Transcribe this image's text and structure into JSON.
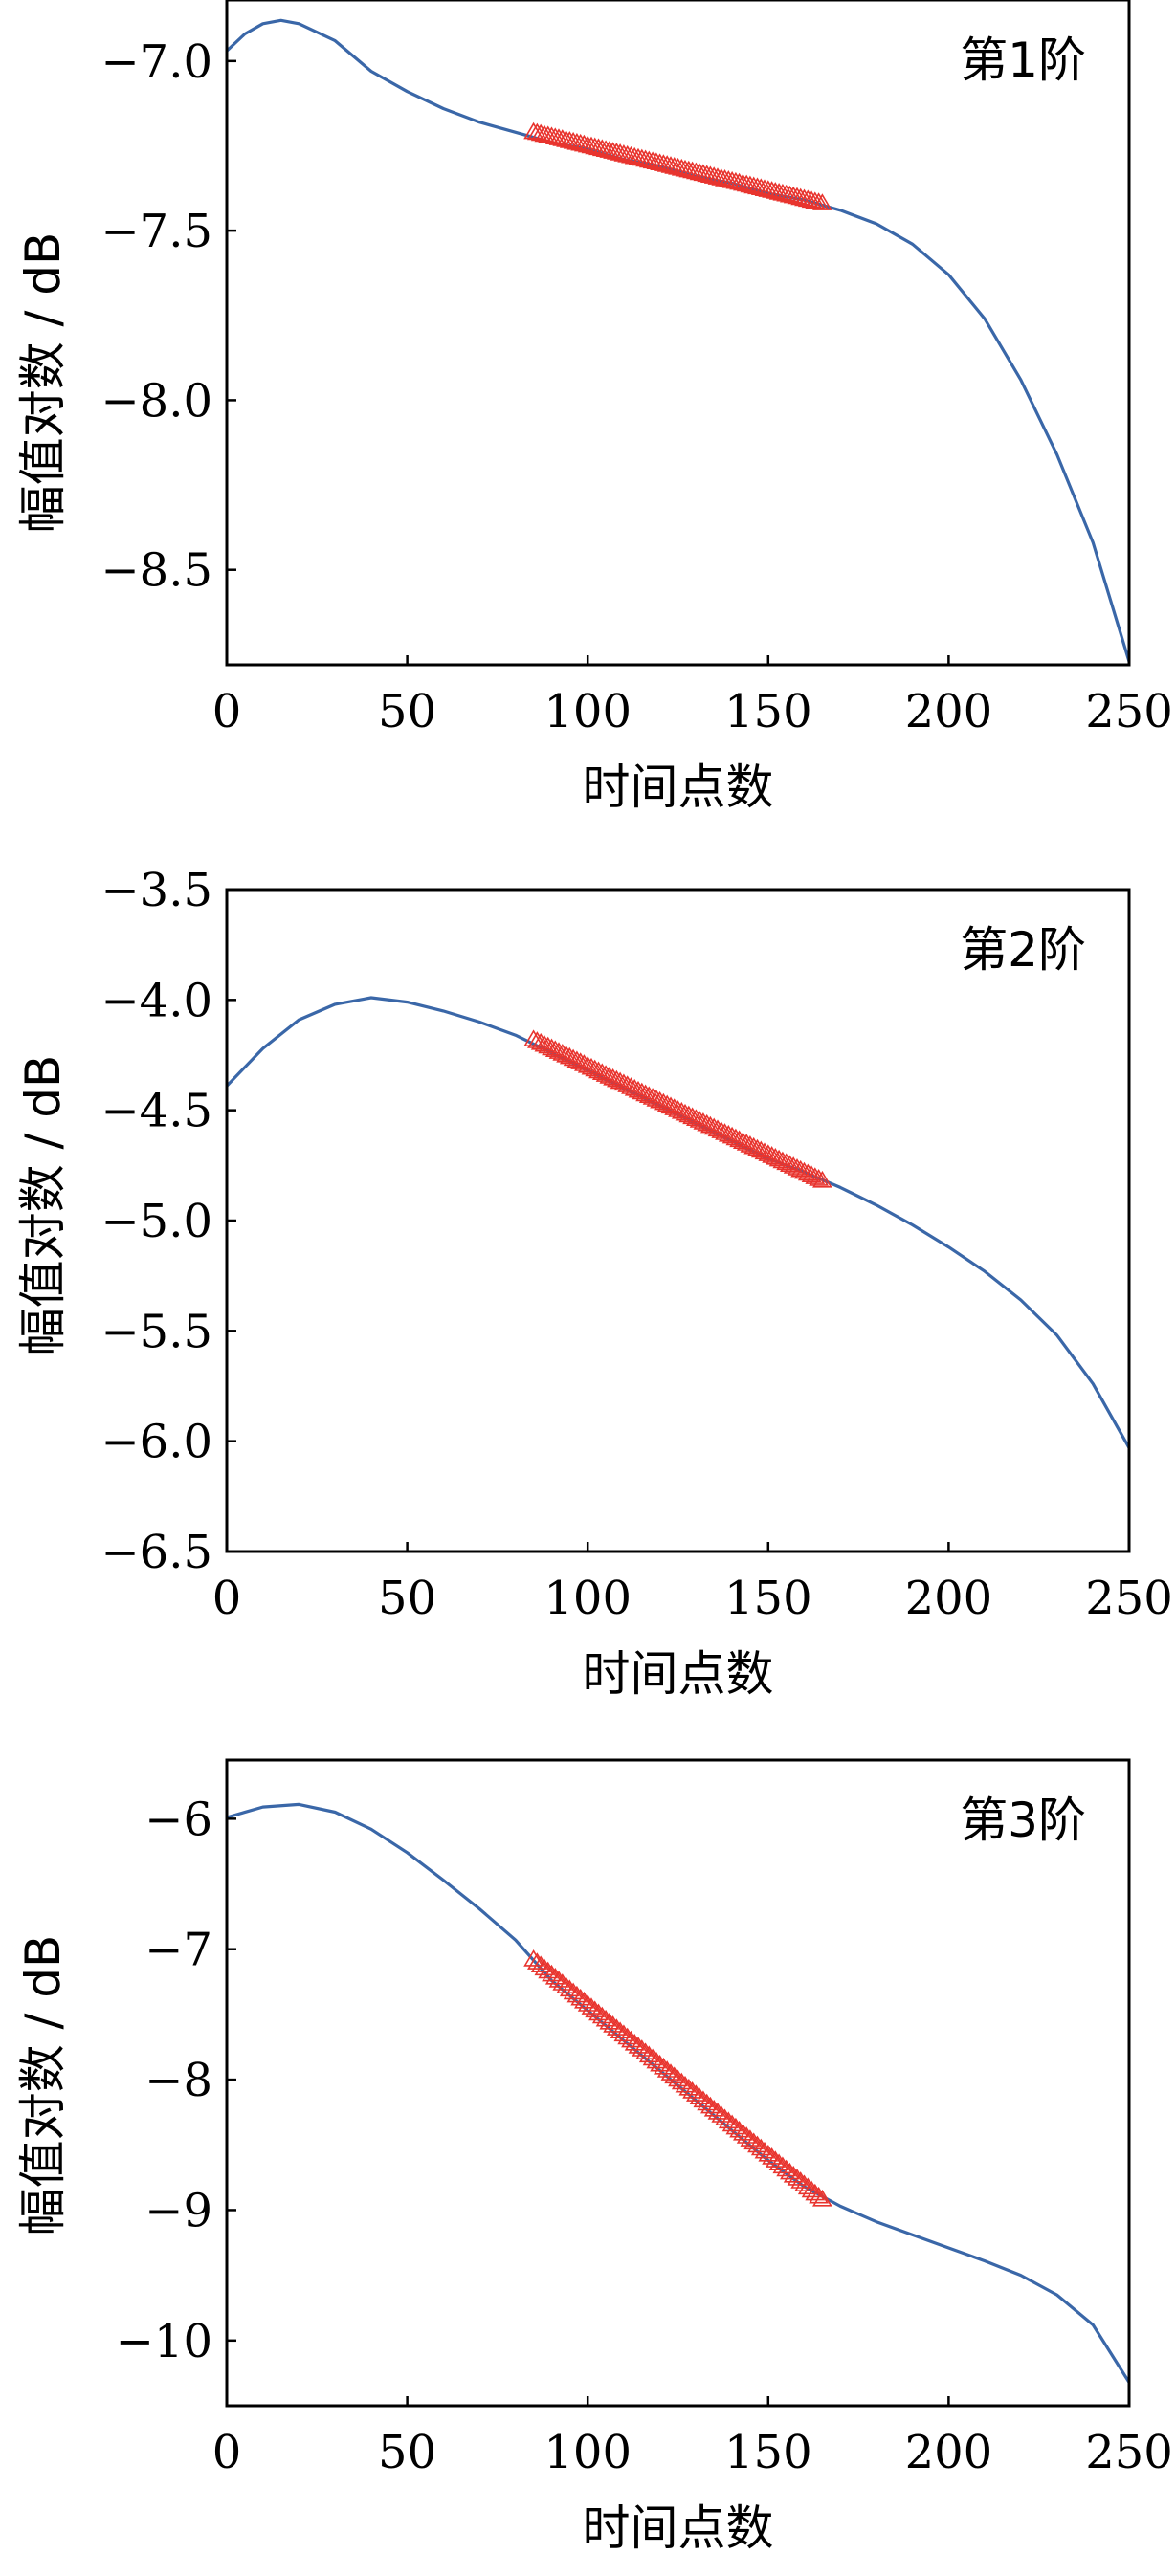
{
  "colors": {
    "curve": "#3a67a8",
    "marker": "#e8342e",
    "axis": "#000000"
  },
  "chart_data": [
    {
      "type": "line",
      "panel_label": "第1阶",
      "xlabel": "时间点数",
      "ylabel": "幅值对数 / dB",
      "xlim": [
        0,
        250
      ],
      "ylim": [
        -8.78,
        -6.82
      ],
      "xticks": [
        0,
        50,
        100,
        150,
        200,
        250
      ],
      "xtick_labels": [
        "0",
        "50",
        "100",
        "150",
        "200",
        "250"
      ],
      "yticks": [
        -7.0,
        -7.5,
        -8.0,
        -8.5
      ],
      "ytick_labels": [
        "−7.0",
        "−7.5",
        "−8.0",
        "−8.5"
      ],
      "series": [
        {
          "style": "line",
          "x": [
            0,
            5,
            10,
            15,
            20,
            30,
            40,
            50,
            60,
            70,
            80,
            90,
            100,
            110,
            120,
            130,
            140,
            150,
            160,
            170,
            180,
            190,
            200,
            210,
            220,
            230,
            240,
            250
          ],
          "y": [
            -6.97,
            -6.92,
            -6.89,
            -6.88,
            -6.89,
            -6.94,
            -7.03,
            -7.09,
            -7.14,
            -7.18,
            -7.21,
            -7.24,
            -7.26,
            -7.29,
            -7.31,
            -7.34,
            -7.36,
            -7.39,
            -7.41,
            -7.44,
            -7.48,
            -7.54,
            -7.63,
            -7.76,
            -7.94,
            -8.16,
            -8.42,
            -8.77
          ]
        },
        {
          "style": "marker",
          "x": [
            85,
            165
          ],
          "y": [
            -7.21,
            -7.42
          ]
        }
      ]
    },
    {
      "type": "line",
      "panel_label": "第2阶",
      "xlabel": "时间点数",
      "ylabel": "幅值对数 / dB",
      "xlim": [
        0,
        250
      ],
      "ylim": [
        -6.5,
        -3.5
      ],
      "xticks": [
        0,
        50,
        100,
        150,
        200,
        250
      ],
      "xtick_labels": [
        "0",
        "50",
        "100",
        "150",
        "200",
        "250"
      ],
      "yticks": [
        -3.5,
        -4.0,
        -4.5,
        -5.0,
        -5.5,
        -6.0,
        -6.5
      ],
      "ytick_labels": [
        "−3.5",
        "−4.0",
        "−4.5",
        "−5.0",
        "−5.5",
        "−6.0",
        "−6.5"
      ],
      "series": [
        {
          "style": "line",
          "x": [
            0,
            10,
            20,
            30,
            40,
            50,
            60,
            70,
            80,
            90,
            100,
            110,
            120,
            130,
            140,
            150,
            160,
            170,
            180,
            190,
            200,
            210,
            220,
            230,
            240,
            250
          ],
          "y": [
            -4.39,
            -4.22,
            -4.09,
            -4.02,
            -3.99,
            -4.01,
            -4.05,
            -4.1,
            -4.16,
            -4.24,
            -4.32,
            -4.4,
            -4.48,
            -4.56,
            -4.64,
            -4.72,
            -4.78,
            -4.85,
            -4.93,
            -5.02,
            -5.12,
            -5.23,
            -5.36,
            -5.52,
            -5.74,
            -6.03
          ]
        },
        {
          "style": "marker",
          "x": [
            85,
            165
          ],
          "y": [
            -4.18,
            -4.82
          ]
        }
      ]
    },
    {
      "type": "line",
      "panel_label": "第3阶",
      "xlabel": "时间点数",
      "ylabel": "幅值对数 / dB",
      "xlim": [
        0,
        250
      ],
      "ylim": [
        -10.5,
        -5.55
      ],
      "xticks": [
        0,
        50,
        100,
        150,
        200,
        250
      ],
      "xtick_labels": [
        "0",
        "50",
        "100",
        "150",
        "200",
        "250"
      ],
      "yticks": [
        -6,
        -7,
        -8,
        -9,
        -10
      ],
      "ytick_labels": [
        "−6",
        "−7",
        "−8",
        "−9",
        "−10"
      ],
      "series": [
        {
          "style": "line",
          "x": [
            0,
            10,
            20,
            30,
            40,
            50,
            60,
            70,
            80,
            90,
            100,
            110,
            120,
            130,
            140,
            150,
            160,
            170,
            180,
            190,
            200,
            210,
            220,
            230,
            240,
            250
          ],
          "y": [
            -5.99,
            -5.91,
            -5.89,
            -5.95,
            -6.08,
            -6.26,
            -6.47,
            -6.69,
            -6.93,
            -7.24,
            -7.47,
            -7.7,
            -7.93,
            -8.16,
            -8.39,
            -8.62,
            -8.82,
            -8.97,
            -9.09,
            -9.19,
            -9.29,
            -9.39,
            -9.5,
            -9.65,
            -9.88,
            -10.32
          ]
        },
        {
          "style": "marker",
          "x": [
            85,
            165
          ],
          "y": [
            -7.08,
            -8.92
          ]
        }
      ]
    }
  ]
}
